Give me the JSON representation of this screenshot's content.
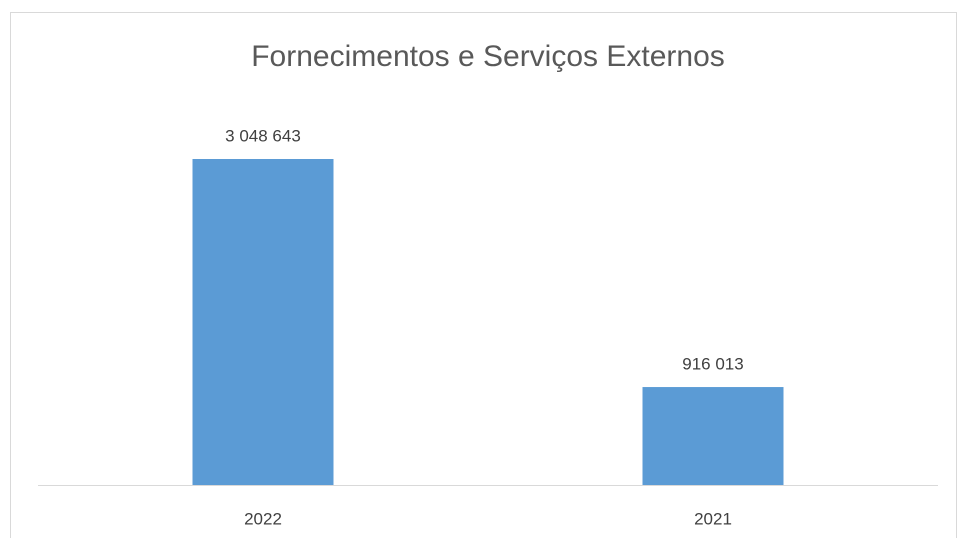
{
  "chart_data": {
    "type": "bar",
    "title": "Fornecimentos e Serviços Externos",
    "categories": [
      "2022",
      "2021"
    ],
    "values": [
      3048643,
      916013
    ],
    "value_labels": [
      "3 048 643",
      "916 013"
    ],
    "color": "#5b9bd5"
  }
}
